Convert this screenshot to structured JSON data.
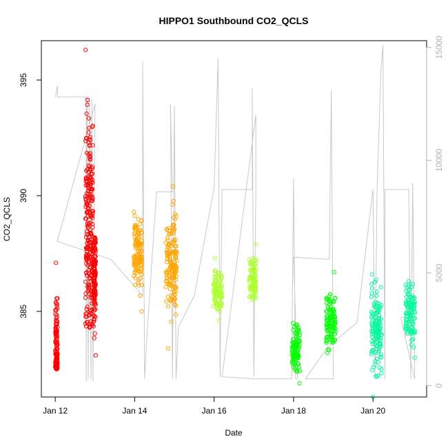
{
  "chart_data": {
    "type": "scatter",
    "title": "HIPPO1 Southbound CO2_QCLS",
    "xlabel": "Date",
    "ylabel": "CO2_QCLS",
    "x_unit": "days since Jan 12",
    "xlim": [
      -0.35,
      9.35
    ],
    "ylim": [
      381.3,
      396.7
    ],
    "x_ticks": [
      {
        "value": 0,
        "label": "Jan 12"
      },
      {
        "value": 2,
        "label": "Jan 14"
      },
      {
        "value": 4,
        "label": "Jan 16"
      },
      {
        "value": 6,
        "label": "Jan 18"
      },
      {
        "value": 8,
        "label": "Jan 20"
      }
    ],
    "y_ticks": [
      385,
      390,
      395
    ],
    "y2_ticks": [
      0,
      5000,
      10000,
      15000
    ],
    "y2lim": [
      -500,
      15300
    ],
    "grid": false,
    "series": [
      {
        "color": "#ff0000",
        "values": [
          {
            "x0": 0.0,
            "x1": 0.06,
            "ymin": 382.5,
            "ymax": 387.1,
            "center": 383.3
          },
          {
            "x0": 0.76,
            "x1": 0.95,
            "ymin": 384.3,
            "ymax": 396.3,
            "center": 388.6
          },
          {
            "x0": 0.96,
            "x1": 1.02,
            "ymin": 383.1,
            "ymax": 388.2,
            "center": 386.5
          }
        ]
      },
      {
        "color": "#ffa500",
        "values": [
          {
            "x0": 1.98,
            "x1": 2.18,
            "ymin": 385.0,
            "ymax": 389.3,
            "center": 387.5
          },
          {
            "x0": 2.78,
            "x1": 3.06,
            "ymin": 383.4,
            "ymax": 390.4,
            "center": 387.0
          }
        ]
      },
      {
        "color": "#adff2f",
        "values": [
          {
            "x0": 3.98,
            "x1": 4.2,
            "ymin": 384.6,
            "ymax": 387.3,
            "center": 385.9
          },
          {
            "x0": 4.88,
            "x1": 5.06,
            "ymin": 385.5,
            "ymax": 387.9,
            "center": 386.4
          }
        ]
      },
      {
        "color": "#00ff00",
        "values": [
          {
            "x0": 5.96,
            "x1": 6.16,
            "ymin": 381.9,
            "ymax": 384.5,
            "center": 383.4
          },
          {
            "x0": 6.82,
            "x1": 7.06,
            "ymin": 383.2,
            "ymax": 386.7,
            "center": 384.6
          }
        ]
      },
      {
        "color": "#00fa9a",
        "values": [
          {
            "x0": 7.96,
            "x1": 8.22,
            "ymin": 381.3,
            "ymax": 386.6,
            "center": 384.2
          },
          {
            "x0": 8.82,
            "x1": 9.06,
            "ymin": 383.0,
            "ymax": 386.3,
            "center": 385.0
          }
        ]
      }
    ],
    "altitude_trace": {
      "color": "#c8c8c8",
      "axis": "right",
      "points": [
        [
          0.0,
          12800
        ],
        [
          0.06,
          13300
        ],
        [
          0.05,
          12800
        ],
        [
          0.78,
          12800
        ],
        [
          0.78,
          200
        ],
        [
          0.8,
          12800
        ],
        [
          0.83,
          300
        ],
        [
          0.86,
          12800
        ],
        [
          0.9,
          300
        ],
        [
          0.92,
          12700
        ],
        [
          0.95,
          200
        ],
        [
          1.0,
          12500
        ],
        [
          0.05,
          6400
        ],
        [
          1.4,
          5600
        ],
        [
          2.2,
          4000
        ],
        [
          2.2,
          14400
        ],
        [
          2.25,
          300
        ],
        [
          2.3,
          2000
        ],
        [
          2.55,
          8600
        ],
        [
          2.95,
          8600
        ],
        [
          2.9,
          12500
        ],
        [
          2.95,
          300
        ],
        [
          3.0,
          12400
        ],
        [
          3.04,
          300
        ],
        [
          3.1,
          2600
        ],
        [
          3.5,
          4000
        ],
        [
          4.0,
          8800
        ],
        [
          4.1,
          14500
        ],
        [
          4.15,
          400
        ],
        [
          4.2,
          8700
        ],
        [
          4.96,
          8700
        ],
        [
          4.96,
          13200
        ],
        [
          5.0,
          400
        ],
        [
          5.05,
          8700
        ],
        [
          5.05,
          12000
        ],
        [
          4.2,
          400
        ],
        [
          5.0,
          300
        ],
        [
          5.95,
          300
        ],
        [
          6.0,
          9200
        ],
        [
          6.05,
          300
        ],
        [
          6.1,
          300
        ],
        [
          6.0,
          5700
        ],
        [
          6.9,
          5600
        ],
        [
          6.95,
          13100
        ],
        [
          7.0,
          300
        ],
        [
          6.3,
          300
        ],
        [
          6.85,
          1700
        ],
        [
          7.6,
          2800
        ],
        [
          8.0,
          8700
        ],
        [
          8.05,
          300
        ],
        [
          8.1,
          8600
        ],
        [
          8.2,
          14000
        ],
        [
          8.25,
          15100
        ],
        [
          8.3,
          300
        ],
        [
          8.3,
          8700
        ],
        [
          8.9,
          8700
        ],
        [
          8.95,
          300
        ],
        [
          9.0,
          9000
        ],
        [
          9.05,
          300
        ],
        [
          8.7,
          3000
        ],
        [
          9.0,
          3200
        ]
      ]
    }
  }
}
